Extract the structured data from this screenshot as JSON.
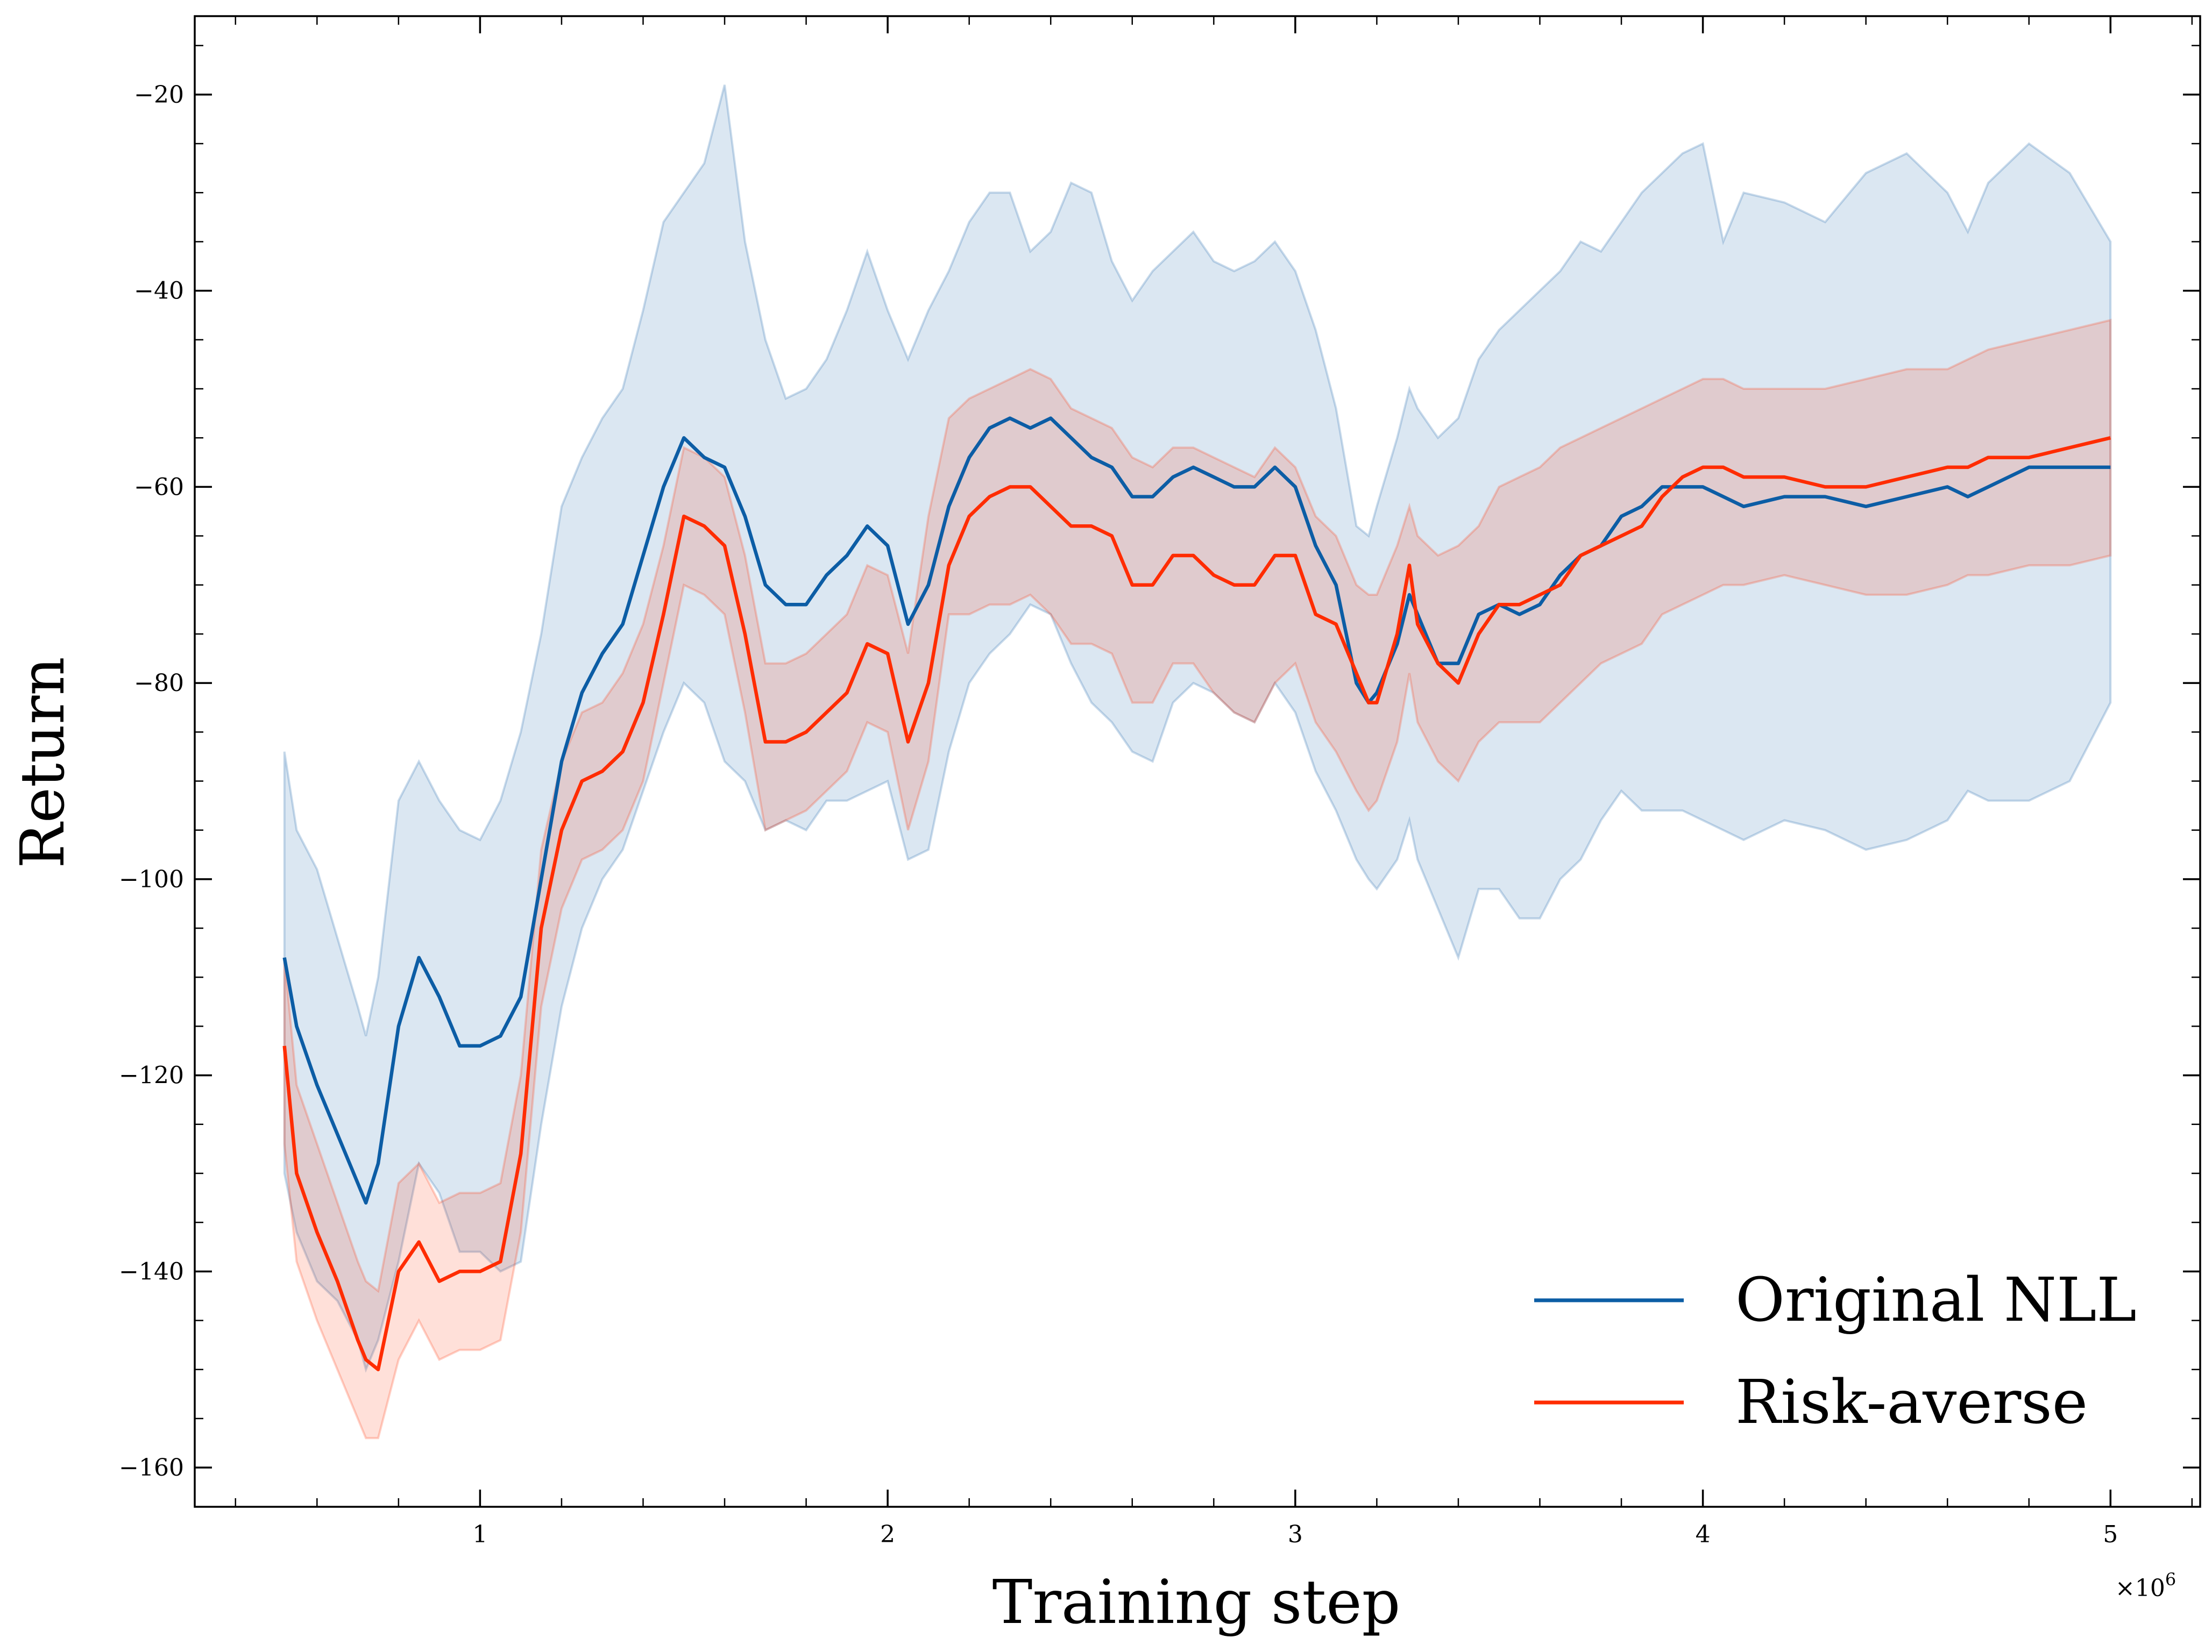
{
  "chart_data": {
    "type": "line",
    "title": "",
    "xlabel": "Training step",
    "ylabel": "Return",
    "x_exponent_label": "×10",
    "x_exponent_power": "6",
    "xlim": [
      0.3,
      5.22
    ],
    "ylim": [
      -164,
      -12
    ],
    "x_ticks": [
      1,
      2,
      3,
      4,
      5
    ],
    "x_tick_labels": [
      "1",
      "2",
      "3",
      "4",
      "5"
    ],
    "y_ticks": [
      -20,
      -40,
      -60,
      -80,
      -100,
      -120,
      -140,
      -160
    ],
    "y_tick_labels": [
      "−20",
      "−40",
      "−60",
      "−80",
      "−100",
      "−120",
      "−140",
      "−160"
    ],
    "grid": false,
    "legend_position": "bottom-right",
    "x_units_note": "training steps in millions (×10^6)",
    "series": [
      {
        "name": "Original NLL",
        "color": "#0C5DA5",
        "band_color": "#0C5DA5",
        "x": [
          0.52,
          0.55,
          0.6,
          0.65,
          0.7,
          0.72,
          0.75,
          0.8,
          0.85,
          0.9,
          0.95,
          1.0,
          1.05,
          1.1,
          1.15,
          1.2,
          1.25,
          1.3,
          1.35,
          1.4,
          1.45,
          1.5,
          1.55,
          1.6,
          1.65,
          1.7,
          1.75,
          1.8,
          1.85,
          1.9,
          1.95,
          2.0,
          2.05,
          2.1,
          2.15,
          2.2,
          2.25,
          2.3,
          2.35,
          2.4,
          2.45,
          2.5,
          2.55,
          2.6,
          2.65,
          2.7,
          2.75,
          2.8,
          2.85,
          2.9,
          2.95,
          3.0,
          3.05,
          3.1,
          3.15,
          3.18,
          3.2,
          3.25,
          3.28,
          3.3,
          3.35,
          3.4,
          3.45,
          3.5,
          3.55,
          3.6,
          3.65,
          3.7,
          3.75,
          3.8,
          3.85,
          3.9,
          3.95,
          4.0,
          4.05,
          4.1,
          4.2,
          4.3,
          4.4,
          4.5,
          4.6,
          4.65,
          4.7,
          4.8,
          4.9,
          5.0
        ],
        "mean": [
          -108,
          -115,
          -121,
          -126,
          -131,
          -133,
          -129,
          -115,
          -108,
          -112,
          -117,
          -117,
          -116,
          -112,
          -100,
          -88,
          -81,
          -77,
          -74,
          -67,
          -60,
          -55,
          -57,
          -58,
          -63,
          -70,
          -72,
          -72,
          -69,
          -67,
          -64,
          -66,
          -74,
          -70,
          -62,
          -57,
          -54,
          -53,
          -54,
          -53,
          -55,
          -57,
          -58,
          -61,
          -61,
          -59,
          -58,
          -59,
          -60,
          -60,
          -58,
          -60,
          -66,
          -70,
          -80,
          -82,
          -81,
          -76,
          -71,
          -73,
          -78,
          -78,
          -73,
          -72,
          -73,
          -72,
          -69,
          -67,
          -66,
          -63,
          -62,
          -60,
          -60,
          -60,
          -61,
          -62,
          -61,
          -61,
          -62,
          -61,
          -60,
          -61,
          -60,
          -58,
          -58,
          -58
        ],
        "upper": [
          -87,
          -95,
          -99,
          -106,
          -113,
          -116,
          -110,
          -92,
          -88,
          -92,
          -95,
          -96,
          -92,
          -85,
          -75,
          -62,
          -57,
          -53,
          -50,
          -42,
          -33,
          -30,
          -27,
          -19,
          -35,
          -45,
          -51,
          -50,
          -47,
          -42,
          -36,
          -42,
          -47,
          -42,
          -38,
          -33,
          -30,
          -30,
          -36,
          -34,
          -29,
          -30,
          -37,
          -41,
          -38,
          -36,
          -34,
          -37,
          -38,
          -37,
          -35,
          -38,
          -44,
          -52,
          -64,
          -65,
          -62,
          -55,
          -50,
          -52,
          -55,
          -53,
          -47,
          -44,
          -42,
          -40,
          -38,
          -35,
          -36,
          -33,
          -30,
          -28,
          -26,
          -25,
          -35,
          -30,
          -31,
          -33,
          -28,
          -26,
          -30,
          -34,
          -29,
          -25,
          -28,
          -35
        ],
        "lower": [
          -130,
          -136,
          -141,
          -143,
          -147,
          -150,
          -147,
          -139,
          -129,
          -132,
          -138,
          -138,
          -140,
          -139,
          -125,
          -113,
          -105,
          -100,
          -97,
          -91,
          -85,
          -80,
          -82,
          -88,
          -90,
          -95,
          -94,
          -95,
          -92,
          -92,
          -91,
          -90,
          -98,
          -97,
          -87,
          -80,
          -77,
          -75,
          -72,
          -73,
          -78,
          -82,
          -84,
          -87,
          -88,
          -82,
          -80,
          -81,
          -83,
          -84,
          -80,
          -83,
          -89,
          -93,
          -98,
          -100,
          -101,
          -98,
          -94,
          -98,
          -103,
          -108,
          -101,
          -101,
          -104,
          -104,
          -100,
          -98,
          -94,
          -91,
          -93,
          -93,
          -93,
          -94,
          -95,
          -96,
          -94,
          -95,
          -97,
          -96,
          -94,
          -91,
          -92,
          -92,
          -90,
          -82
        ]
      },
      {
        "name": "Risk-averse",
        "color": "#FF2C00",
        "band_color": "#FF2C00",
        "x": [
          0.52,
          0.55,
          0.6,
          0.65,
          0.7,
          0.72,
          0.75,
          0.8,
          0.85,
          0.9,
          0.95,
          1.0,
          1.05,
          1.1,
          1.15,
          1.2,
          1.25,
          1.3,
          1.35,
          1.4,
          1.45,
          1.5,
          1.55,
          1.6,
          1.65,
          1.7,
          1.75,
          1.8,
          1.85,
          1.9,
          1.95,
          2.0,
          2.05,
          2.1,
          2.15,
          2.2,
          2.25,
          2.3,
          2.35,
          2.4,
          2.45,
          2.5,
          2.55,
          2.6,
          2.65,
          2.7,
          2.75,
          2.8,
          2.85,
          2.9,
          2.95,
          3.0,
          3.05,
          3.1,
          3.15,
          3.18,
          3.2,
          3.25,
          3.28,
          3.3,
          3.35,
          3.4,
          3.45,
          3.5,
          3.55,
          3.6,
          3.65,
          3.7,
          3.75,
          3.8,
          3.85,
          3.9,
          3.95,
          4.0,
          4.05,
          4.1,
          4.2,
          4.3,
          4.4,
          4.5,
          4.6,
          4.65,
          4.7,
          4.8,
          4.9,
          5.0
        ],
        "mean": [
          -117,
          -130,
          -136,
          -141,
          -147,
          -149,
          -150,
          -140,
          -137,
          -141,
          -140,
          -140,
          -139,
          -128,
          -105,
          -95,
          -90,
          -89,
          -87,
          -82,
          -73,
          -63,
          -64,
          -66,
          -75,
          -86,
          -86,
          -85,
          -83,
          -81,
          -76,
          -77,
          -86,
          -80,
          -68,
          -63,
          -61,
          -60,
          -60,
          -62,
          -64,
          -64,
          -65,
          -70,
          -70,
          -67,
          -67,
          -69,
          -70,
          -70,
          -67,
          -67,
          -73,
          -74,
          -79,
          -82,
          -82,
          -75,
          -68,
          -74,
          -78,
          -80,
          -75,
          -72,
          -72,
          -71,
          -70,
          -67,
          -66,
          -65,
          -64,
          -61,
          -59,
          -58,
          -58,
          -59,
          -59,
          -60,
          -60,
          -59,
          -58,
          -58,
          -57,
          -57,
          -56,
          -55
        ],
        "upper": [
          -108,
          -121,
          -127,
          -133,
          -139,
          -141,
          -142,
          -131,
          -129,
          -133,
          -132,
          -132,
          -131,
          -120,
          -97,
          -88,
          -83,
          -82,
          -79,
          -74,
          -66,
          -56,
          -57,
          -59,
          -67,
          -78,
          -78,
          -77,
          -75,
          -73,
          -68,
          -69,
          -77,
          -63,
          -53,
          -51,
          -50,
          -49,
          -48,
          -49,
          -52,
          -53,
          -54,
          -57,
          -58,
          -56,
          -56,
          -57,
          -58,
          -59,
          -56,
          -58,
          -63,
          -65,
          -70,
          -71,
          -71,
          -66,
          -62,
          -65,
          -67,
          -66,
          -64,
          -60,
          -59,
          -58,
          -56,
          -55,
          -54,
          -53,
          -52,
          -51,
          -50,
          -49,
          -49,
          -50,
          -50,
          -50,
          -49,
          -48,
          -48,
          -47,
          -46,
          -45,
          -44,
          -43
        ],
        "lower": [
          -127,
          -139,
          -145,
          -150,
          -155,
          -157,
          -157,
          -149,
          -145,
          -149,
          -148,
          -148,
          -147,
          -136,
          -113,
          -103,
          -98,
          -97,
          -95,
          -90,
          -80,
          -70,
          -71,
          -73,
          -83,
          -95,
          -94,
          -93,
          -91,
          -89,
          -84,
          -85,
          -95,
          -88,
          -73,
          -73,
          -72,
          -72,
          -71,
          -73,
          -76,
          -76,
          -77,
          -82,
          -82,
          -78,
          -78,
          -81,
          -83,
          -84,
          -80,
          -78,
          -84,
          -87,
          -91,
          -93,
          -92,
          -86,
          -79,
          -84,
          -88,
          -90,
          -86,
          -84,
          -84,
          -84,
          -82,
          -80,
          -78,
          -77,
          -76,
          -73,
          -72,
          -71,
          -70,
          -70,
          -69,
          -70,
          -71,
          -71,
          -70,
          -69,
          -69,
          -68,
          -68,
          -67
        ]
      }
    ]
  }
}
